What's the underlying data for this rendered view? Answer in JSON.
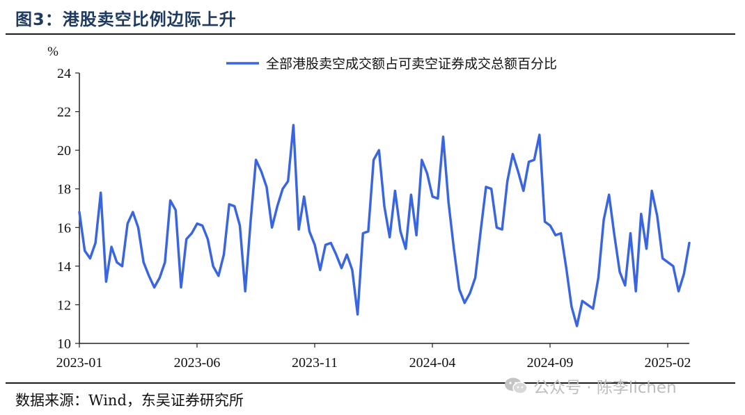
{
  "figure": {
    "title": "图3：港股卖空比例边际上升",
    "source": "数据来源：Wind，东吴证券研究所",
    "watermark": "公众号 · 陈李lichen",
    "watermark_icon": "wechat-icon"
  },
  "colors": {
    "series": "#3a65e0",
    "axis": "#222222",
    "title": "#1f3a5f",
    "watermark": "#bdbdbd"
  },
  "chart_data": {
    "type": "line",
    "title": "",
    "ylabel": "%",
    "ylim": [
      10,
      24
    ],
    "yticks": [
      10,
      12,
      14,
      16,
      18,
      20,
      22,
      24
    ],
    "xtick_labels": [
      "2023-01",
      "2023-06",
      "2023-11",
      "2024-04",
      "2024-09",
      "2025-02"
    ],
    "grid": false,
    "legend_position": "top-center",
    "series": [
      {
        "name": "全部港股卖空成交额占可卖空证券成交总额百分比",
        "values": [
          16.8,
          14.8,
          14.4,
          15.2,
          17.8,
          13.2,
          15.0,
          14.2,
          14.0,
          16.2,
          16.8,
          16.0,
          14.2,
          13.5,
          12.9,
          13.4,
          14.2,
          17.4,
          16.9,
          12.9,
          15.4,
          15.7,
          16.2,
          16.1,
          15.4,
          14.0,
          13.5,
          14.6,
          17.2,
          17.1,
          16.1,
          12.7,
          16.3,
          19.5,
          18.9,
          18.1,
          16.0,
          17.1,
          18.0,
          18.4,
          21.3,
          15.9,
          17.6,
          15.8,
          15.1,
          13.8,
          15.1,
          15.2,
          14.6,
          13.9,
          14.6,
          13.8,
          11.5,
          15.7,
          15.8,
          19.5,
          20.0,
          17.1,
          15.5,
          17.9,
          15.8,
          14.9,
          17.7,
          15.6,
          19.5,
          18.8,
          17.6,
          17.5,
          20.7,
          17.3,
          14.9,
          12.8,
          12.1,
          12.6,
          13.4,
          15.8,
          18.1,
          18.0,
          16.0,
          15.9,
          18.4,
          19.8,
          18.9,
          17.9,
          19.4,
          19.5,
          20.8,
          16.3,
          16.1,
          15.6,
          15.7,
          13.9,
          11.9,
          10.9,
          12.2,
          12.0,
          11.8,
          13.4,
          16.4,
          17.7,
          15.6,
          13.7,
          13.0,
          15.7,
          12.7,
          16.7,
          14.9,
          17.9,
          16.6,
          14.4,
          14.2,
          14.0,
          12.7,
          13.6,
          15.2
        ]
      }
    ]
  }
}
